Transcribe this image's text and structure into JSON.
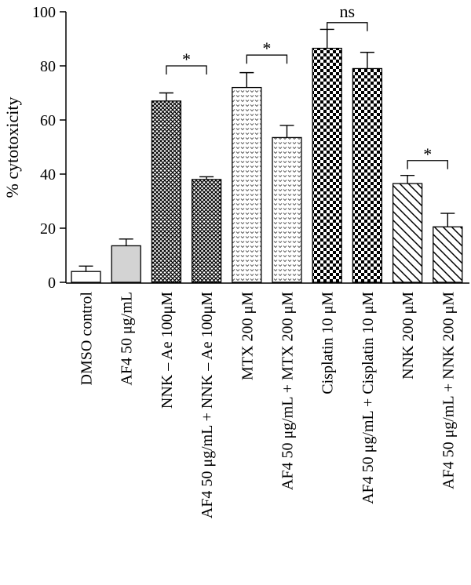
{
  "chart_data": {
    "type": "bar",
    "ylabel": "% cytotoxicity",
    "ylim": [
      0,
      100
    ],
    "yticks": [
      0,
      20,
      40,
      60,
      80,
      100
    ],
    "grid": false,
    "categories": [
      "DMSO control",
      "AF4 50 μg/mL",
      "NNK – Ae 100μM",
      "AF4 50 μg/mL + NNK – Ae 100μM",
      "MTX 200 μM",
      "AF4 50 μg/mL + MTX 200 μM",
      "Cisplatin 10 μM",
      "AF4 50 μg/mL + Cisplatin 10 μM",
      "NNK 200 μM",
      "AF4 50 μg/mL + NNK 200 μM"
    ],
    "values": [
      4,
      13.5,
      67,
      38,
      72,
      53.5,
      86.5,
      79,
      36.5,
      20.5
    ],
    "errors": [
      2,
      2.5,
      3,
      1,
      5.5,
      4.5,
      7,
      6,
      3,
      5
    ],
    "fills": [
      "white",
      "gray",
      "crosshatch",
      "crosshatch",
      "dots",
      "dots",
      "checker",
      "checker",
      "diagonal",
      "diagonal"
    ],
    "significance": [
      {
        "pair": [
          2,
          3
        ],
        "label": "*",
        "level": 80
      },
      {
        "pair": [
          4,
          5
        ],
        "label": "*",
        "level": 84
      },
      {
        "pair": [
          6,
          7
        ],
        "label": "ns",
        "level": 96
      },
      {
        "pair": [
          8,
          9
        ],
        "label": "*",
        "level": 45
      }
    ]
  }
}
